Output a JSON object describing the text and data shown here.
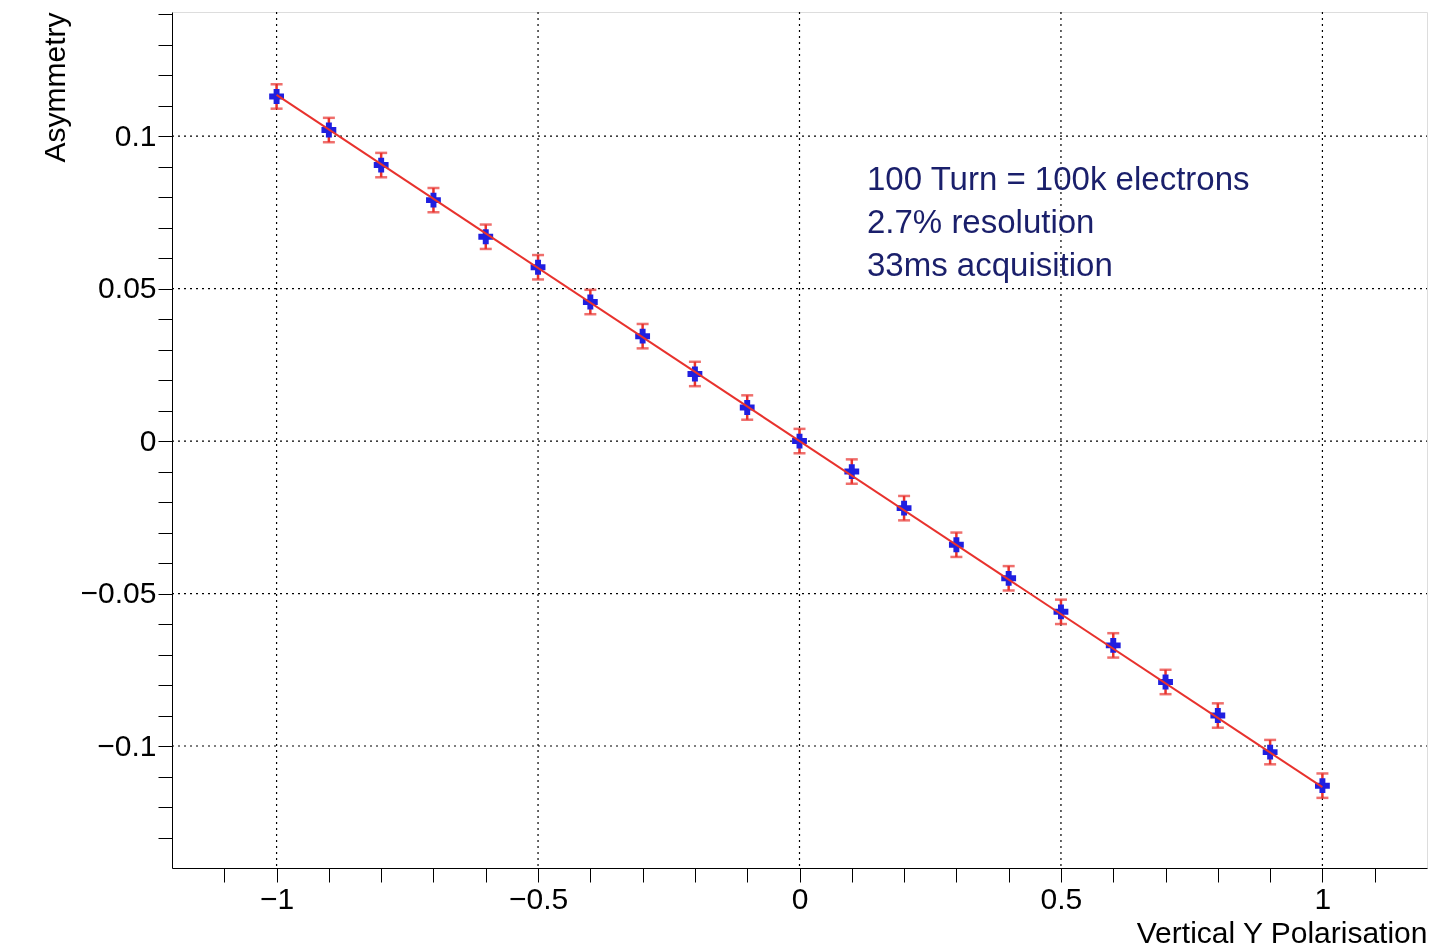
{
  "chart_data": {
    "type": "scatter",
    "xlabel": "Vertical Y Polarisation",
    "ylabel": "Asymmetry",
    "x": [
      -1,
      -0.9,
      -0.8,
      -0.7,
      -0.6,
      -0.5,
      -0.4,
      -0.3,
      -0.2,
      -0.1,
      0,
      0.1,
      0.2,
      0.3,
      0.4,
      0.5,
      0.6,
      0.7,
      0.8,
      0.9,
      1
    ],
    "series": [
      {
        "type": "scatter",
        "color": "#1f1fe0",
        "values": [
          0.113,
          0.102,
          0.0905,
          0.079,
          0.067,
          0.057,
          0.0456,
          0.0344,
          0.022,
          0.011,
          0,
          -0.01,
          -0.022,
          -0.034,
          -0.045,
          -0.056,
          -0.067,
          -0.079,
          -0.09,
          -0.102,
          -0.113
        ],
        "errors": [
          0.004,
          0.004,
          0.004,
          0.004,
          0.004,
          0.004,
          0.004,
          0.004,
          0.004,
          0.004,
          0.004,
          0.004,
          0.004,
          0.004,
          0.004,
          0.004,
          0.004,
          0.004,
          0.004,
          0.004,
          0.004
        ]
      },
      {
        "type": "line",
        "marker": "none",
        "color": "#e8322d",
        "x": [
          -1,
          1
        ],
        "values": [
          0.1135,
          -0.1135
        ]
      }
    ],
    "marker": "cross",
    "line_style": "solid",
    "grid": true,
    "xlim": [
      -1.2,
      1.2
    ],
    "ylim": [
      -0.14,
      0.1407
    ],
    "xticks": [
      {
        "value": -1.1,
        "label": null
      },
      -1,
      {
        "value": -0.9,
        "label": null
      },
      {
        "value": -0.8,
        "label": null
      },
      {
        "value": -0.7,
        "label": null
      },
      {
        "value": -0.6,
        "label": null
      },
      -0.5,
      {
        "value": -0.4,
        "label": null
      },
      {
        "value": -0.3,
        "label": null
      },
      {
        "value": -0.2,
        "label": null
      },
      {
        "value": -0.1,
        "label": null
      },
      0,
      {
        "value": 0.1,
        "label": null
      },
      {
        "value": 0.2,
        "label": null
      },
      {
        "value": 0.3,
        "label": null
      },
      {
        "value": 0.4,
        "label": null
      },
      0.5,
      {
        "value": 0.6,
        "label": null
      },
      {
        "value": 0.7,
        "label": null
      },
      {
        "value": 0.8,
        "label": null
      },
      {
        "value": 0.9,
        "label": null
      },
      1,
      {
        "value": 1.1,
        "label": null
      }
    ],
    "yticks": [
      {
        "value": -0.13,
        "label": null
      },
      {
        "value": -0.12,
        "label": null
      },
      {
        "value": -0.11,
        "label": null
      },
      -0.1,
      {
        "value": -0.09,
        "label": null
      },
      {
        "value": -0.08,
        "label": null
      },
      {
        "value": -0.07,
        "label": null
      },
      {
        "value": -0.06,
        "label": null
      },
      -0.05,
      {
        "value": -0.04,
        "label": null
      },
      {
        "value": -0.03,
        "label": null
      },
      {
        "value": -0.02,
        "label": null
      },
      {
        "value": -0.01,
        "label": null
      },
      0,
      {
        "value": 0.01,
        "label": null
      },
      {
        "value": 0.02,
        "label": null
      },
      {
        "value": 0.03,
        "label": null
      },
      {
        "value": 0.04,
        "label": null
      },
      0.05,
      {
        "value": 0.06,
        "label": null
      },
      {
        "value": 0.07,
        "label": null
      },
      {
        "value": 0.08,
        "label": null
      },
      {
        "value": 0.09,
        "label": null
      },
      0.1,
      {
        "value": 0.11,
        "label": null
      },
      {
        "value": 0.12,
        "label": null
      },
      {
        "value": 0.13,
        "label": null
      },
      {
        "value": 0.14,
        "label": null
      }
    ],
    "annotations": [
      "100 Turn = 100k electrons",
      "2.7% resolution",
      "33ms acquisition"
    ]
  }
}
